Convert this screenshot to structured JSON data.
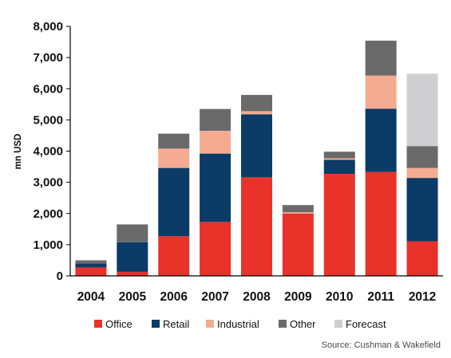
{
  "chart_data": {
    "type": "bar",
    "stacked": true,
    "title": "",
    "xlabel": "",
    "ylabel": "mn USD",
    "ylim": [
      0,
      8000
    ],
    "yticks": [
      0,
      1000,
      2000,
      3000,
      4000,
      5000,
      6000,
      7000,
      8000
    ],
    "ytick_labels": [
      "0",
      "1,000",
      "2,000",
      "3,000",
      "4,000",
      "5,000",
      "6,000",
      "7,000",
      "8,000"
    ],
    "grid": false,
    "legend_position": "bottom",
    "categories": [
      "2004",
      "2005",
      "2006",
      "2007",
      "2008",
      "2009",
      "2010",
      "2011",
      "2012"
    ],
    "series": [
      {
        "name": "Office",
        "color": "#e8322a",
        "values": [
          270,
          130,
          1270,
          1730,
          3160,
          2000,
          3270,
          3330,
          1110
        ]
      },
      {
        "name": "Retail",
        "color": "#0b3b66",
        "values": [
          130,
          950,
          2190,
          2190,
          2020,
          0,
          450,
          2030,
          2030
        ]
      },
      {
        "name": "Industrial",
        "color": "#f5ab92",
        "values": [
          0,
          0,
          620,
          730,
          100,
          40,
          50,
          1060,
          320
        ]
      },
      {
        "name": "Other",
        "color": "#6a6a6a",
        "values": [
          100,
          570,
          480,
          700,
          520,
          230,
          210,
          1120,
          700
        ]
      },
      {
        "name": "Forecast",
        "color": "#cfcfd1",
        "values": [
          0,
          0,
          0,
          0,
          0,
          0,
          0,
          0,
          2320
        ]
      }
    ],
    "source": "Source: Cushman & Wakefield"
  }
}
